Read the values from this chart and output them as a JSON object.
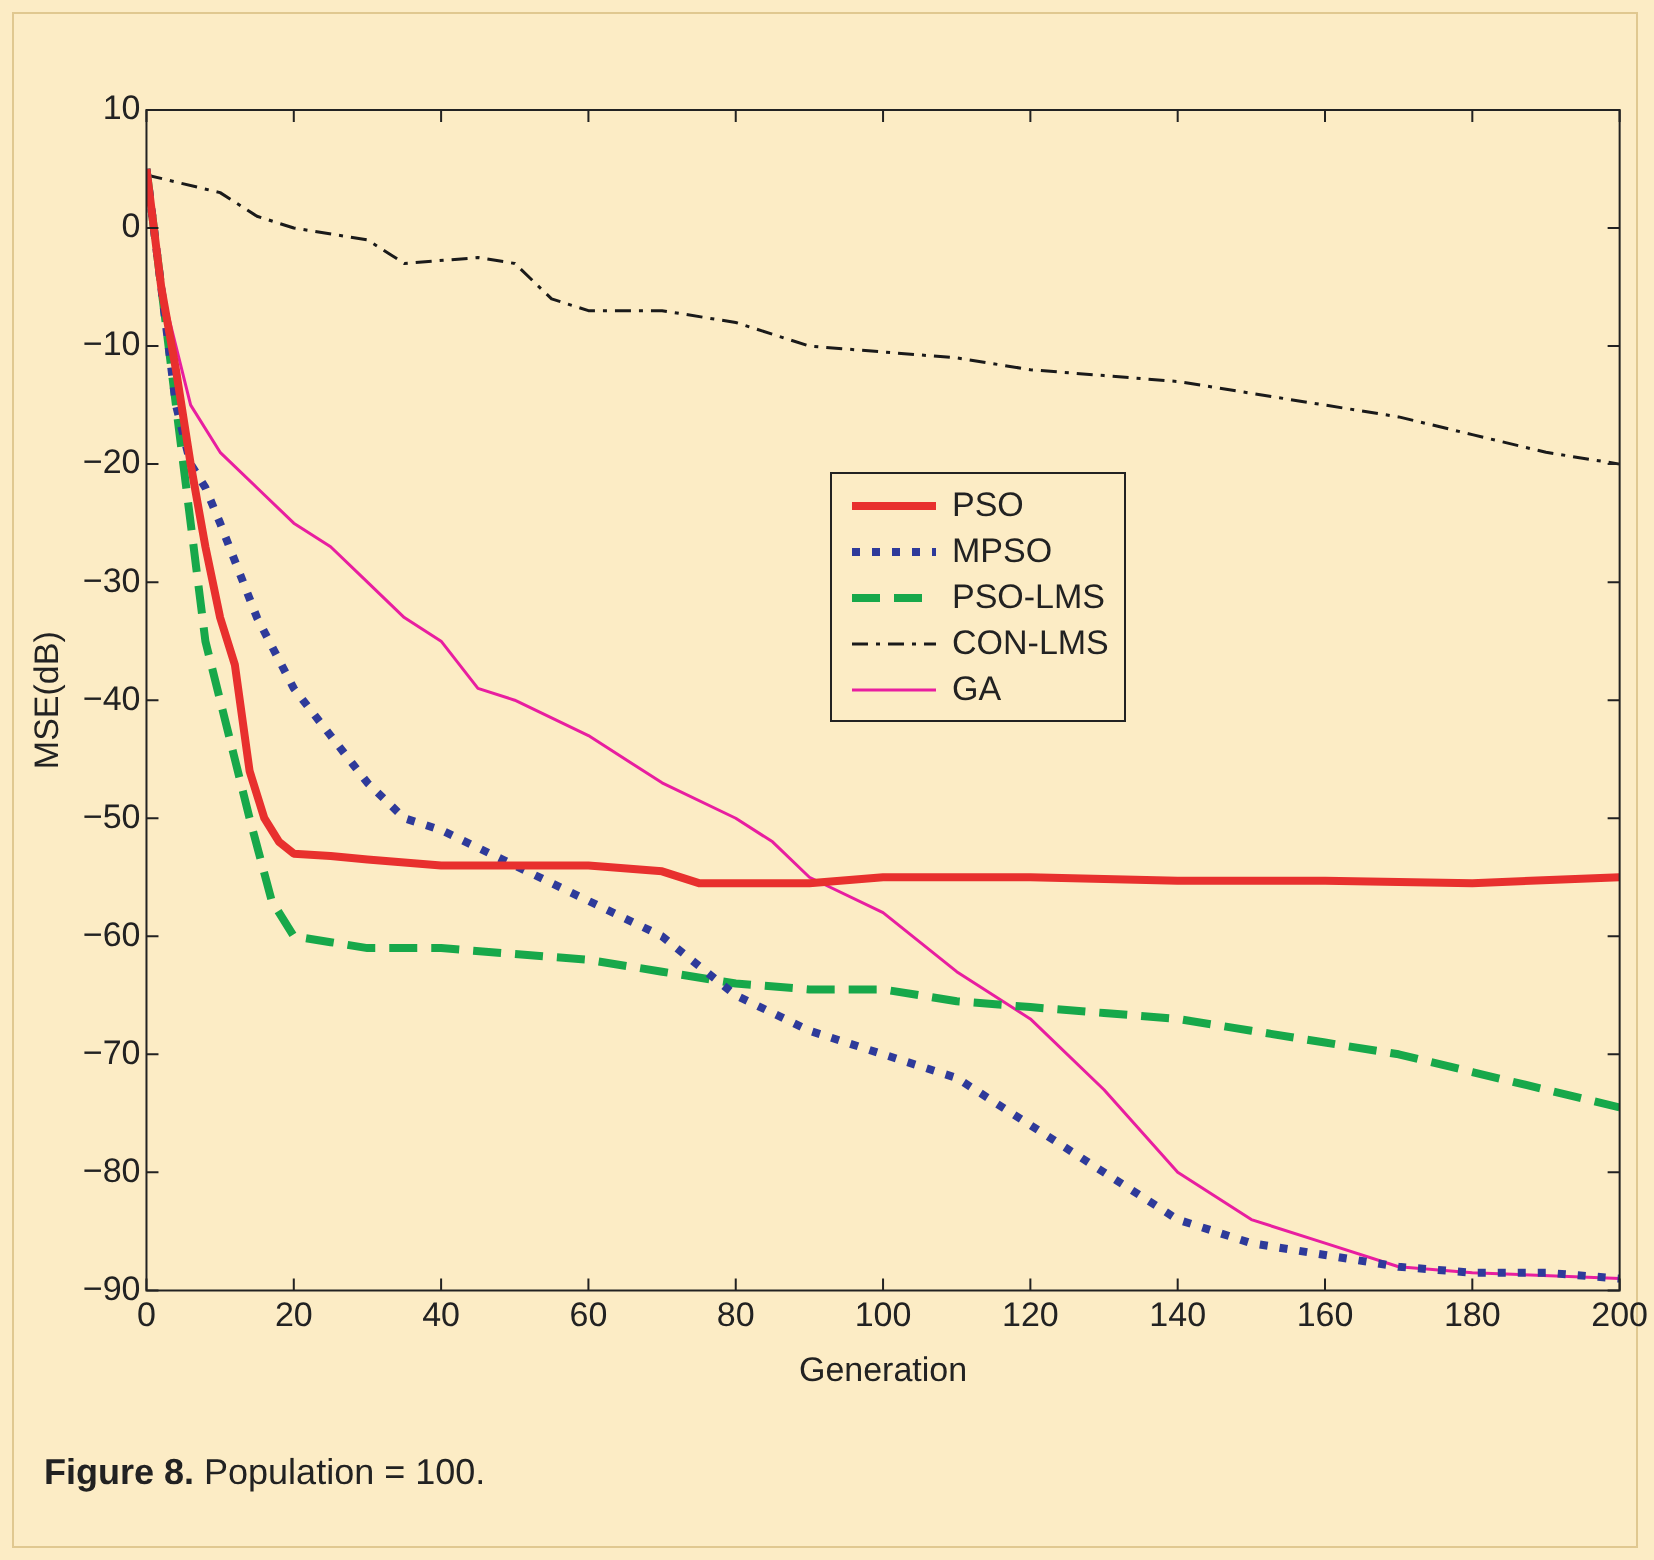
{
  "chart_data": {
    "type": "line",
    "xlabel": "Generation",
    "ylabel": "MSE(dB)",
    "annotations": [
      "Figure 8. Population = 100."
    ],
    "xlim": [
      0,
      200
    ],
    "xticks": [
      0,
      20,
      40,
      60,
      80,
      100,
      120,
      140,
      160,
      180,
      200
    ],
    "ylim": [
      -90,
      10
    ],
    "yticks": [
      10,
      0,
      {
        "value": -10,
        "label": "−10"
      },
      {
        "value": -20,
        "label": "−20"
      },
      {
        "value": -30,
        "label": "−30"
      },
      {
        "value": -40,
        "label": "−40"
      },
      {
        "value": -50,
        "label": "−50"
      },
      {
        "value": -60,
        "label": "−60"
      },
      {
        "value": -70,
        "label": "−70"
      },
      {
        "value": -80,
        "label": "−80"
      },
      {
        "value": -90,
        "label": "−90"
      }
    ],
    "grid": false,
    "legend": "right",
    "marker": "none",
    "series": [
      {
        "name": "PSO",
        "color": "#e8302e",
        "line_style": "solid",
        "x": [
          0,
          2,
          4,
          6,
          8,
          10,
          12,
          14,
          16,
          18,
          20,
          25,
          30,
          40,
          50,
          60,
          70,
          75,
          80,
          90,
          100,
          120,
          140,
          160,
          180,
          200
        ],
        "values": [
          5,
          -5,
          -12,
          -20,
          -27,
          -33,
          -37,
          -46,
          -50,
          -52,
          -53,
          -53.2,
          -53.5,
          -54,
          -54,
          -54,
          -54.5,
          -55.5,
          -55.5,
          -55.5,
          -55,
          -55,
          -55.3,
          -55.3,
          -55.5,
          -55
        ]
      },
      {
        "name": "MPSO",
        "color": "#2e3a9a",
        "line_style": "dotted",
        "x": [
          0,
          2,
          4,
          6,
          8,
          10,
          15,
          20,
          25,
          30,
          35,
          40,
          50,
          60,
          70,
          80,
          90,
          100,
          110,
          120,
          130,
          140,
          150,
          160,
          170,
          180,
          190,
          200
        ],
        "values": [
          5,
          -5,
          -15,
          -20,
          -22,
          -25,
          -33,
          -39,
          -43,
          -47,
          -50,
          -51,
          -54,
          -57,
          -60,
          -65,
          -68,
          -70,
          -72,
          -76,
          -80,
          -84,
          -86,
          -87,
          -88,
          -88.5,
          -88.5,
          -89
        ]
      },
      {
        "name": "PSO-LMS",
        "color": "#17a84a",
        "line_style": "dashed",
        "x": [
          0,
          2,
          4,
          6,
          8,
          10,
          14,
          17,
          20,
          25,
          30,
          40,
          50,
          60,
          70,
          80,
          90,
          100,
          110,
          120,
          130,
          140,
          150,
          160,
          170,
          180,
          190,
          200
        ],
        "values": [
          5,
          -5,
          -15,
          -25,
          -35,
          -40,
          -50,
          -57,
          -60,
          -60.5,
          -61,
          -61,
          -61.5,
          -62,
          -63,
          -64,
          -64.5,
          -64.5,
          -65.5,
          -66,
          -66.5,
          -67,
          -68,
          -69,
          -70,
          -71.5,
          -73,
          -74.5
        ]
      },
      {
        "name": "CON-LMS",
        "color": "#1a1a1a",
        "line_style": "dashed",
        "x": [
          0,
          10,
          15,
          20,
          30,
          35,
          45,
          50,
          55,
          60,
          70,
          80,
          90,
          100,
          110,
          120,
          130,
          140,
          150,
          160,
          170,
          180,
          190,
          200
        ],
        "values": [
          4.5,
          3,
          1,
          0,
          -1,
          -3,
          -2.5,
          -3,
          -6,
          -7,
          -7,
          -8,
          -10,
          -10.5,
          -11,
          -12,
          -12.5,
          -13,
          -14,
          -15,
          -16,
          -17.5,
          -19,
          -20
        ]
      },
      {
        "name": "GA",
        "color": "#e81ea0",
        "line_style": "solid",
        "x": [
          0,
          2,
          4,
          6,
          10,
          15,
          20,
          25,
          30,
          35,
          40,
          45,
          50,
          60,
          70,
          80,
          85,
          90,
          100,
          110,
          120,
          130,
          140,
          150,
          160,
          170,
          180,
          200
        ],
        "values": [
          5,
          -5,
          -10,
          -15,
          -19,
          -22,
          -25,
          -27,
          -30,
          -33,
          -35,
          -39,
          -40,
          -43,
          -47,
          -50,
          -52,
          -55,
          -58,
          -63,
          -67,
          -73,
          -80,
          -84,
          -86,
          -88,
          -88.5,
          -89
        ]
      }
    ]
  }
}
